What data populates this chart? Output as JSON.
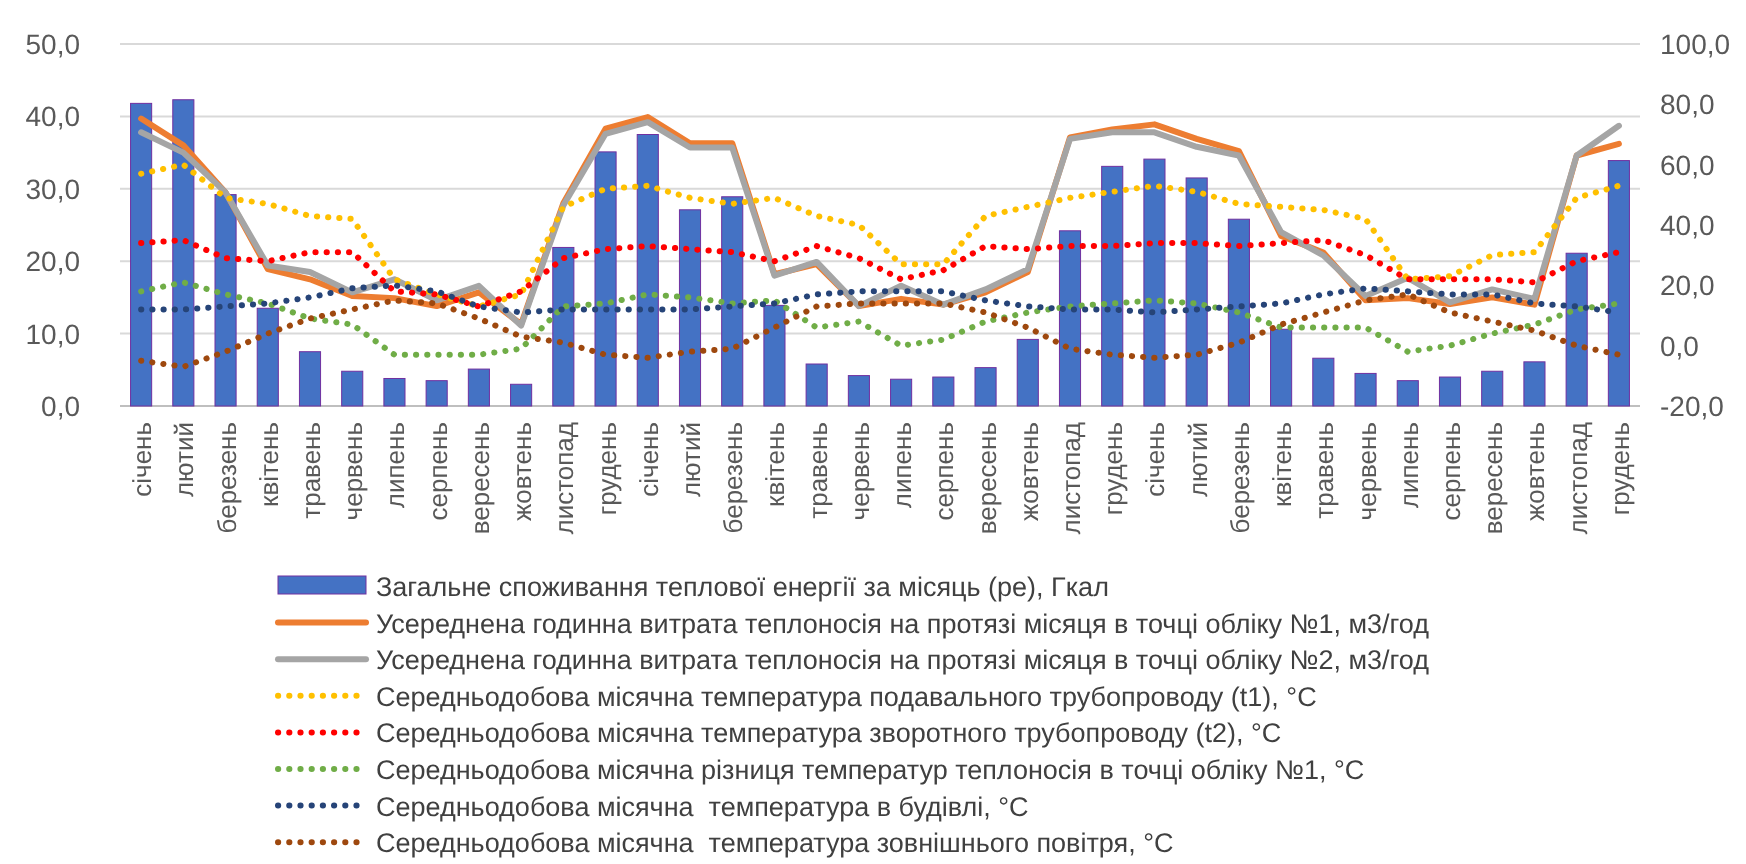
{
  "chart_data": {
    "type": "bar",
    "legend": "bottom",
    "grid": "y",
    "categories": [
      "січень",
      "лютий",
      "березень",
      "квітень",
      "травень",
      "червень",
      "липень",
      "серпень",
      "вересень",
      "жовтень",
      "листопад",
      "грудень",
      "січень",
      "лютий",
      "березень",
      "квітень",
      "травень",
      "червень",
      "липень",
      "серпень",
      "вересень",
      "жовтень",
      "листопад",
      "грудень",
      "січень",
      "лютий",
      "березень",
      "квітень",
      "травень",
      "червень",
      "липень",
      "серпень",
      "вересень",
      "жовтень",
      "листопад",
      "грудень"
    ],
    "ylim": [
      0,
      50
    ],
    "yticks": [
      {
        "value": 0,
        "label": "0,0"
      },
      {
        "value": 10,
        "label": "10,0"
      },
      {
        "value": 20,
        "label": "20,0"
      },
      {
        "value": 30,
        "label": "30,0"
      },
      {
        "value": 40,
        "label": "40,0"
      },
      {
        "value": 50,
        "label": "50,0"
      }
    ],
    "y2lim": [
      -20,
      100
    ],
    "y2ticks": [
      {
        "value": -20,
        "label": "-20,0"
      },
      {
        "value": 0,
        "label": "0,0"
      },
      {
        "value": 20,
        "label": "20,0"
      },
      {
        "value": 40,
        "label": "40,0"
      },
      {
        "value": 60,
        "label": "60,0"
      },
      {
        "value": 80,
        "label": "80,0"
      },
      {
        "value": 100,
        "label": "100,0"
      }
    ],
    "series": [
      {
        "name": "Загальне споживання теплової енергії за місяць (ре), Гкал",
        "color": "#4472c4",
        "values": [
          41.8,
          42.3,
          29.2,
          13.5,
          7.5,
          4.8,
          3.8,
          3.5,
          5.1,
          3.0,
          21.9,
          35.1,
          37.5,
          27.1,
          28.9,
          13.9,
          5.8,
          4.2,
          3.7,
          4.0,
          5.3,
          9.2,
          24.2,
          33.1,
          34.1,
          31.5,
          25.8,
          10.6,
          6.6,
          4.5,
          3.5,
          4.0,
          4.8,
          6.1,
          21.1,
          33.9
        ]
      },
      {
        "type": "line",
        "line_style": "solid",
        "name": "Усереднена годинна витрата теплоносія на протязі місяця в точці обліку №1, м3/год",
        "color": "#ed7d31",
        "values": [
          39.7,
          36.0,
          29.5,
          18.9,
          17.5,
          15.2,
          14.9,
          13.8,
          15.7,
          11.3,
          28.0,
          38.3,
          39.9,
          36.3,
          36.3,
          18.2,
          19.6,
          13.8,
          14.8,
          14.0,
          15.7,
          18.5,
          37.1,
          38.2,
          38.9,
          36.9,
          35.2,
          23.5,
          21.2,
          14.6,
          14.9,
          14.1,
          15.0,
          14.0,
          34.6,
          36.2
        ]
      },
      {
        "type": "line",
        "line_style": "solid",
        "name": "Усереднена годинна витрата теплоносія на протязі місяця в точці обліку №2, м3/год",
        "color": "#a5a5a5",
        "values": [
          37.8,
          35.0,
          29.5,
          19.4,
          18.5,
          15.7,
          17.5,
          14.6,
          16.6,
          11.1,
          27.7,
          37.6,
          39.2,
          35.7,
          35.7,
          18.0,
          19.9,
          13.8,
          16.6,
          14.0,
          16.1,
          18.9,
          36.9,
          37.8,
          37.8,
          35.8,
          34.6,
          24.0,
          20.8,
          15.2,
          17.7,
          14.3,
          16.1,
          14.8,
          34.6,
          38.7
        ]
      },
      {
        "type": "line",
        "line_style": "dotted",
        "axis": "y2",
        "name": "Середньодобова місячна температура подавального трубопроводу (t1), °C",
        "color": "#ffc000",
        "values": [
          57,
          60,
          49,
          47,
          43,
          42,
          22,
          17,
          13,
          17,
          46,
          52,
          53,
          49,
          47,
          49,
          43,
          40,
          27,
          27,
          43,
          46,
          49,
          51,
          53,
          51,
          47,
          46,
          45,
          42,
          22,
          23,
          30,
          31,
          49,
          53
        ]
      },
      {
        "type": "line",
        "line_style": "dotted",
        "axis": "y2",
        "name": "Середньодобова місячна температура зворотного трубопроводу (t2), °C",
        "color": "#ff0000",
        "values": [
          34,
          35,
          29,
          28,
          31,
          31,
          18,
          17,
          13,
          18,
          29,
          32,
          33,
          32,
          31,
          28,
          33,
          29,
          22,
          25,
          33,
          32,
          33,
          33,
          34,
          34,
          33,
          34,
          35,
          30,
          22,
          22,
          22,
          21,
          28,
          31
        ]
      },
      {
        "type": "line",
        "line_style": "dotted",
        "axis": "y2",
        "name": "Середньодобова місячна різниця температур теплоносія в точці обліку №1, °C",
        "color": "#70ad47",
        "values": [
          18,
          21,
          17,
          14,
          9,
          7,
          -3,
          -3,
          -3,
          -1,
          13,
          14,
          17,
          16,
          14,
          15,
          6,
          8,
          0,
          2,
          8,
          11,
          13,
          14,
          15,
          14,
          11,
          6,
          6,
          6,
          -2,
          0,
          4,
          7,
          12,
          14
        ]
      },
      {
        "type": "line",
        "line_style": "dotted",
        "axis": "y2",
        "name": "Середньодобова місячна  температура в будівлі, °C",
        "color": "#264478",
        "values": [
          12,
          12,
          13,
          14,
          16,
          19,
          20,
          18,
          13,
          11,
          12,
          12,
          12,
          12,
          13,
          14,
          17,
          18,
          18,
          18,
          15,
          13,
          12,
          12,
          11,
          12,
          13,
          14,
          17,
          19,
          18,
          17,
          17,
          14,
          13,
          11
        ]
      },
      {
        "type": "line",
        "line_style": "dotted",
        "axis": "y2",
        "name": "Середньодобова місячна  температура зовнішнього повітря, °C",
        "color": "#9e480e",
        "values": [
          -5,
          -7,
          -2,
          4,
          9,
          12,
          15,
          14,
          9,
          3,
          1,
          -3,
          -4,
          -2,
          -1,
          6,
          13,
          14,
          14,
          14,
          11,
          6,
          -1,
          -3,
          -4,
          -3,
          1,
          7,
          11,
          15,
          17,
          11,
          8,
          5,
          0,
          -3
        ]
      }
    ]
  }
}
